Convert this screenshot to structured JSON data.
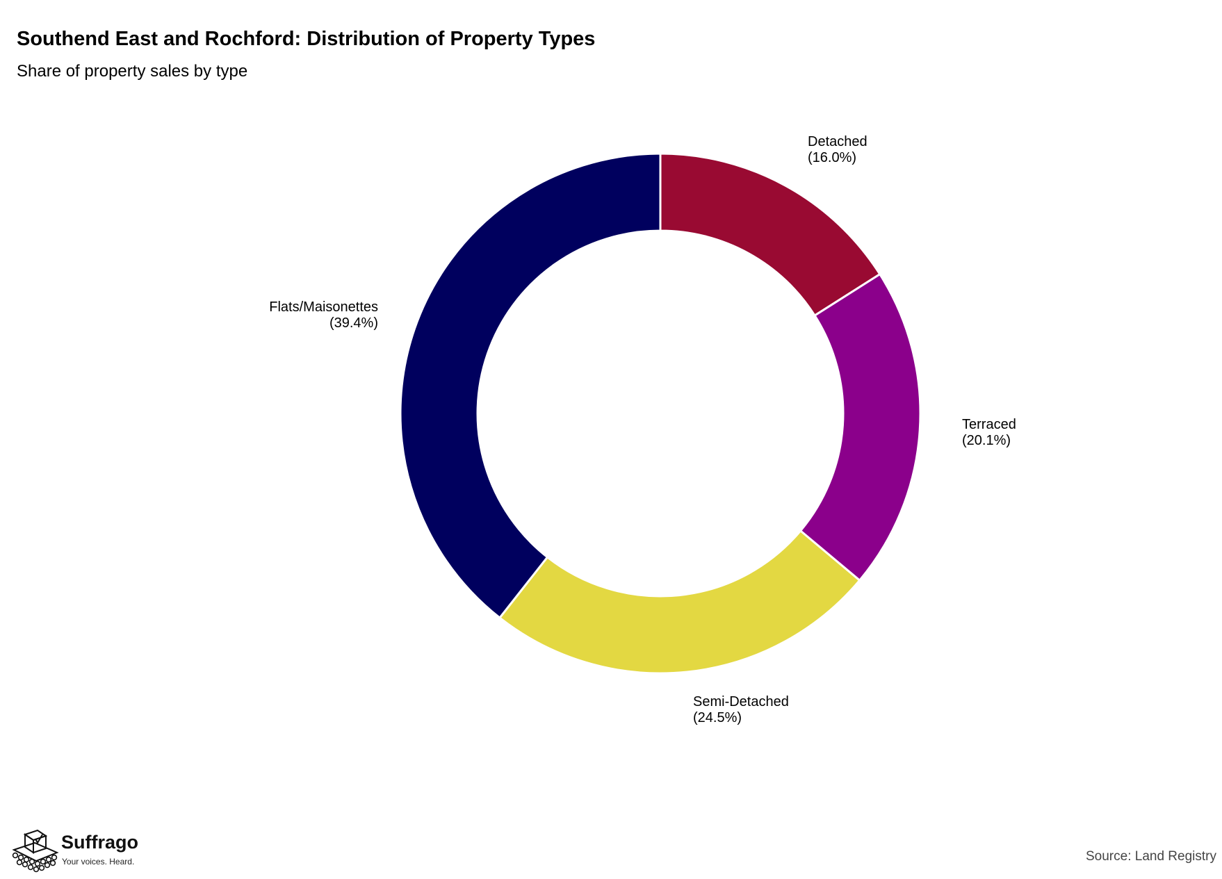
{
  "header": {
    "title": "Southend East and Rochford: Distribution of Property Types",
    "subtitle": "Share of property sales by type"
  },
  "chart_data": {
    "type": "pie",
    "style": "donut",
    "title": "Southend East and Rochford: Distribution of Property Types",
    "subtitle": "Share of property sales by type",
    "start_angle": "12 o'clock, clockwise",
    "slices": [
      {
        "label": "Detached",
        "value": 16.0,
        "display": "(16.0%)",
        "color": "#990a32"
      },
      {
        "label": "Terraced",
        "value": 20.1,
        "display": "(20.1%)",
        "color": "#8b008b"
      },
      {
        "label": "Semi-Detached",
        "value": 24.5,
        "display": "(24.5%)",
        "color": "#e3d842"
      },
      {
        "label": "Flats/Maisonettes",
        "value": 39.4,
        "display": "(39.4%)",
        "color": "#00005e"
      }
    ]
  },
  "branding": {
    "name": "Suffrago",
    "tagline": "Your voices. Heard.",
    "icon": "ballot-box-crowd-icon"
  },
  "footer": {
    "source": "Source: Land Registry"
  }
}
